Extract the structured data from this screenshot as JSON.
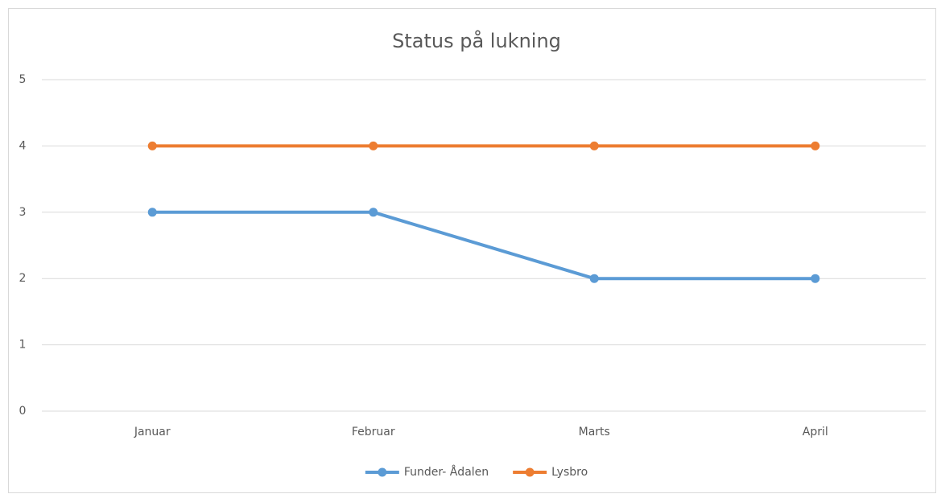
{
  "chart_data": {
    "type": "line",
    "title": "Status på lukning",
    "categories": [
      "Januar",
      "Februar",
      "Marts",
      "April"
    ],
    "series": [
      {
        "name": "Funder- Ådalen",
        "color": "#5b9bd5",
        "values": [
          3,
          3,
          2,
          2
        ]
      },
      {
        "name": "Lysbro",
        "color": "#ed7d31",
        "values": [
          4,
          4,
          4,
          4
        ]
      }
    ],
    "ylim": [
      0,
      5
    ],
    "yticks": [
      0,
      1,
      2,
      3,
      4,
      5
    ],
    "grid": true,
    "legend": "bottom"
  }
}
